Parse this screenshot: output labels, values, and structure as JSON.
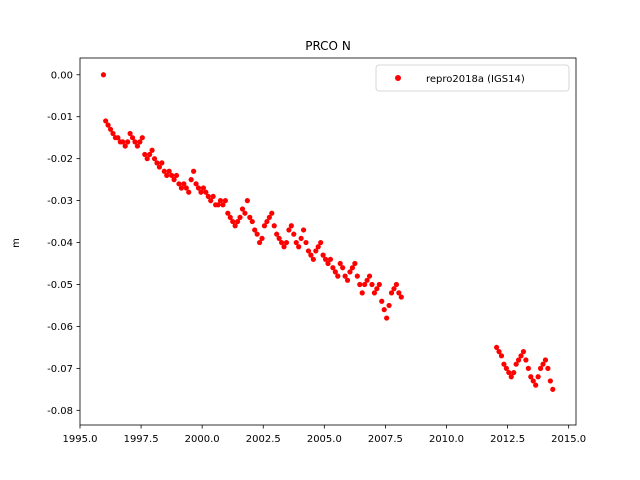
{
  "chart_data": {
    "type": "scatter",
    "title": "PRCO N",
    "xlabel": "",
    "ylabel": "m",
    "xlim": [
      1995.0,
      2015.3
    ],
    "ylim": [
      -0.0835,
      0.004
    ],
    "xticks": [
      "1995.0",
      "1997.5",
      "2000.0",
      "2002.5",
      "2005.0",
      "2007.5",
      "2010.0",
      "2012.5",
      "2015.0"
    ],
    "xtick_values": [
      1995.0,
      1997.5,
      2000.0,
      2002.5,
      2005.0,
      2007.5,
      2010.0,
      2012.5,
      2015.0
    ],
    "yticks": [
      "0.00",
      "-0.01",
      "-0.02",
      "-0.03",
      "-0.04",
      "-0.05",
      "-0.06",
      "-0.07",
      "-0.08"
    ],
    "ytick_values": [
      0.0,
      -0.01,
      -0.02,
      -0.03,
      -0.04,
      -0.05,
      -0.06,
      -0.07,
      -0.08
    ],
    "grid": false,
    "legend_position": "top-right",
    "series": [
      {
        "name": "repro2018a (IGS14)",
        "color": "#ff0000",
        "marker": "circle",
        "x": [
          1995.96,
          1996.05,
          1996.15,
          1996.25,
          1996.35,
          1996.45,
          1996.55,
          1996.65,
          1996.75,
          1996.85,
          1996.95,
          1997.05,
          1997.15,
          1997.25,
          1997.35,
          1997.45,
          1997.55,
          1997.65,
          1997.75,
          1997.85,
          1997.95,
          1998.05,
          1998.15,
          1998.25,
          1998.35,
          1998.45,
          1998.55,
          1998.65,
          1998.75,
          1998.85,
          1998.95,
          1999.05,
          1999.15,
          1999.25,
          1999.35,
          1999.45,
          1999.55,
          1999.65,
          1999.75,
          1999.85,
          1999.95,
          2000.05,
          2000.15,
          2000.25,
          2000.35,
          2000.45,
          2000.55,
          2000.65,
          2000.75,
          2000.85,
          2000.95,
          2001.05,
          2001.15,
          2001.25,
          2001.35,
          2001.45,
          2001.55,
          2001.65,
          2001.75,
          2001.85,
          2001.95,
          2002.05,
          2002.15,
          2002.25,
          2002.35,
          2002.45,
          2002.55,
          2002.65,
          2002.75,
          2002.85,
          2002.95,
          2003.05,
          2003.15,
          2003.25,
          2003.35,
          2003.45,
          2003.55,
          2003.65,
          2003.75,
          2003.85,
          2003.95,
          2004.05,
          2004.15,
          2004.25,
          2004.35,
          2004.45,
          2004.55,
          2004.65,
          2004.75,
          2004.85,
          2004.95,
          2005.05,
          2005.15,
          2005.25,
          2005.35,
          2005.45,
          2005.55,
          2005.65,
          2005.75,
          2005.85,
          2005.95,
          2006.05,
          2006.15,
          2006.25,
          2006.35,
          2006.45,
          2006.55,
          2006.65,
          2006.75,
          2006.85,
          2006.95,
          2007.05,
          2007.15,
          2007.25,
          2007.35,
          2007.45,
          2007.55,
          2007.65,
          2007.75,
          2007.85,
          2007.95,
          2008.05,
          2008.15,
          2012.05,
          2012.15,
          2012.25,
          2012.35,
          2012.45,
          2012.55,
          2012.65,
          2012.75,
          2012.85,
          2012.95,
          2013.05,
          2013.15,
          2013.25,
          2013.35,
          2013.45,
          2013.55,
          2013.65,
          2013.75,
          2013.85,
          2013.95,
          2014.05,
          2014.15,
          2014.25,
          2014.35
        ],
        "y": [
          0.0,
          -0.011,
          -0.012,
          -0.013,
          -0.014,
          -0.015,
          -0.015,
          -0.016,
          -0.016,
          -0.017,
          -0.016,
          -0.014,
          -0.015,
          -0.016,
          -0.017,
          -0.016,
          -0.015,
          -0.019,
          -0.02,
          -0.019,
          -0.018,
          -0.02,
          -0.021,
          -0.022,
          -0.021,
          -0.023,
          -0.024,
          -0.023,
          -0.024,
          -0.025,
          -0.024,
          -0.026,
          -0.027,
          -0.026,
          -0.027,
          -0.028,
          -0.025,
          -0.023,
          -0.026,
          -0.027,
          -0.028,
          -0.027,
          -0.028,
          -0.029,
          -0.03,
          -0.029,
          -0.031,
          -0.031,
          -0.03,
          -0.031,
          -0.03,
          -0.033,
          -0.034,
          -0.035,
          -0.036,
          -0.035,
          -0.034,
          -0.032,
          -0.033,
          -0.03,
          -0.034,
          -0.035,
          -0.037,
          -0.038,
          -0.04,
          -0.039,
          -0.036,
          -0.035,
          -0.034,
          -0.033,
          -0.036,
          -0.038,
          -0.039,
          -0.04,
          -0.041,
          -0.04,
          -0.037,
          -0.036,
          -0.038,
          -0.04,
          -0.041,
          -0.039,
          -0.037,
          -0.04,
          -0.042,
          -0.043,
          -0.044,
          -0.042,
          -0.041,
          -0.04,
          -0.043,
          -0.044,
          -0.045,
          -0.044,
          -0.046,
          -0.047,
          -0.048,
          -0.045,
          -0.046,
          -0.048,
          -0.049,
          -0.047,
          -0.046,
          -0.045,
          -0.048,
          -0.05,
          -0.052,
          -0.05,
          -0.049,
          -0.048,
          -0.05,
          -0.052,
          -0.051,
          -0.05,
          -0.054,
          -0.056,
          -0.058,
          -0.055,
          -0.052,
          -0.051,
          -0.05,
          -0.052,
          -0.053,
          -0.065,
          -0.066,
          -0.067,
          -0.069,
          -0.07,
          -0.071,
          -0.072,
          -0.071,
          -0.069,
          -0.068,
          -0.067,
          -0.066,
          -0.068,
          -0.07,
          -0.072,
          -0.073,
          -0.074,
          -0.072,
          -0.07,
          -0.069,
          -0.068,
          -0.07,
          -0.073,
          -0.075
        ]
      }
    ]
  }
}
